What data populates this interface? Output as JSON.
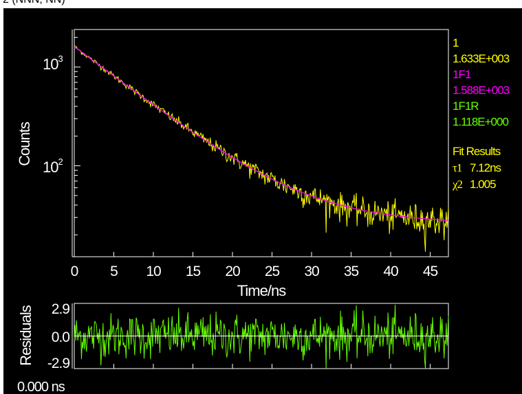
{
  "top_caption": "2 (NNN, NN)",
  "chart_data": [
    {
      "type": "line",
      "scale": "log",
      "xlabel": "Time/ns",
      "ylabel": "Counts",
      "xlim": [
        0,
        47.3
      ],
      "ylim": [
        12,
        2400
      ],
      "x_ticks": [
        0,
        5,
        10,
        15,
        20,
        25,
        30,
        35,
        40,
        45
      ],
      "y_ticks": [
        {
          "value": 1000,
          "base": "10",
          "exp": "3"
        },
        {
          "value": 100,
          "base": "10",
          "exp": "2"
        }
      ],
      "legend": [
        {
          "label": "1",
          "value": "1.633E+003",
          "color": "#ffff00"
        },
        {
          "label": "1F1",
          "value": "1.588E+003",
          "color": "#ff00ff"
        },
        {
          "label": "1F1R",
          "value": "1.118E+000",
          "color": "#66ff00"
        }
      ],
      "series": [
        {
          "name": "1",
          "color": "#ffff00",
          "role": "data",
          "noise": "poisson"
        },
        {
          "name": "1F1",
          "color": "#ff00ff",
          "role": "fit",
          "model": "monoexponential",
          "amplitude": 1588,
          "tau_ns": 7.12,
          "baseline": 26
        }
      ],
      "fit_results": {
        "title": "Fit Results",
        "tau1": {
          "symbol": "τ1",
          "value": "7.12ns"
        },
        "chi2": {
          "symbol": "χ2",
          "value": "1.005"
        }
      }
    },
    {
      "type": "line",
      "ylabel": "Residuals",
      "xlim": [
        0,
        47.3
      ],
      "ylim": [
        -2.9,
        2.9
      ],
      "y_ticks": [
        "2.9",
        "0.0",
        "-2.9"
      ],
      "series": [
        {
          "name": "residuals",
          "color": "#66ff00"
        }
      ],
      "zero_line_color": "#ffffff"
    }
  ],
  "footer": {
    "shift": "0.000 ns"
  }
}
